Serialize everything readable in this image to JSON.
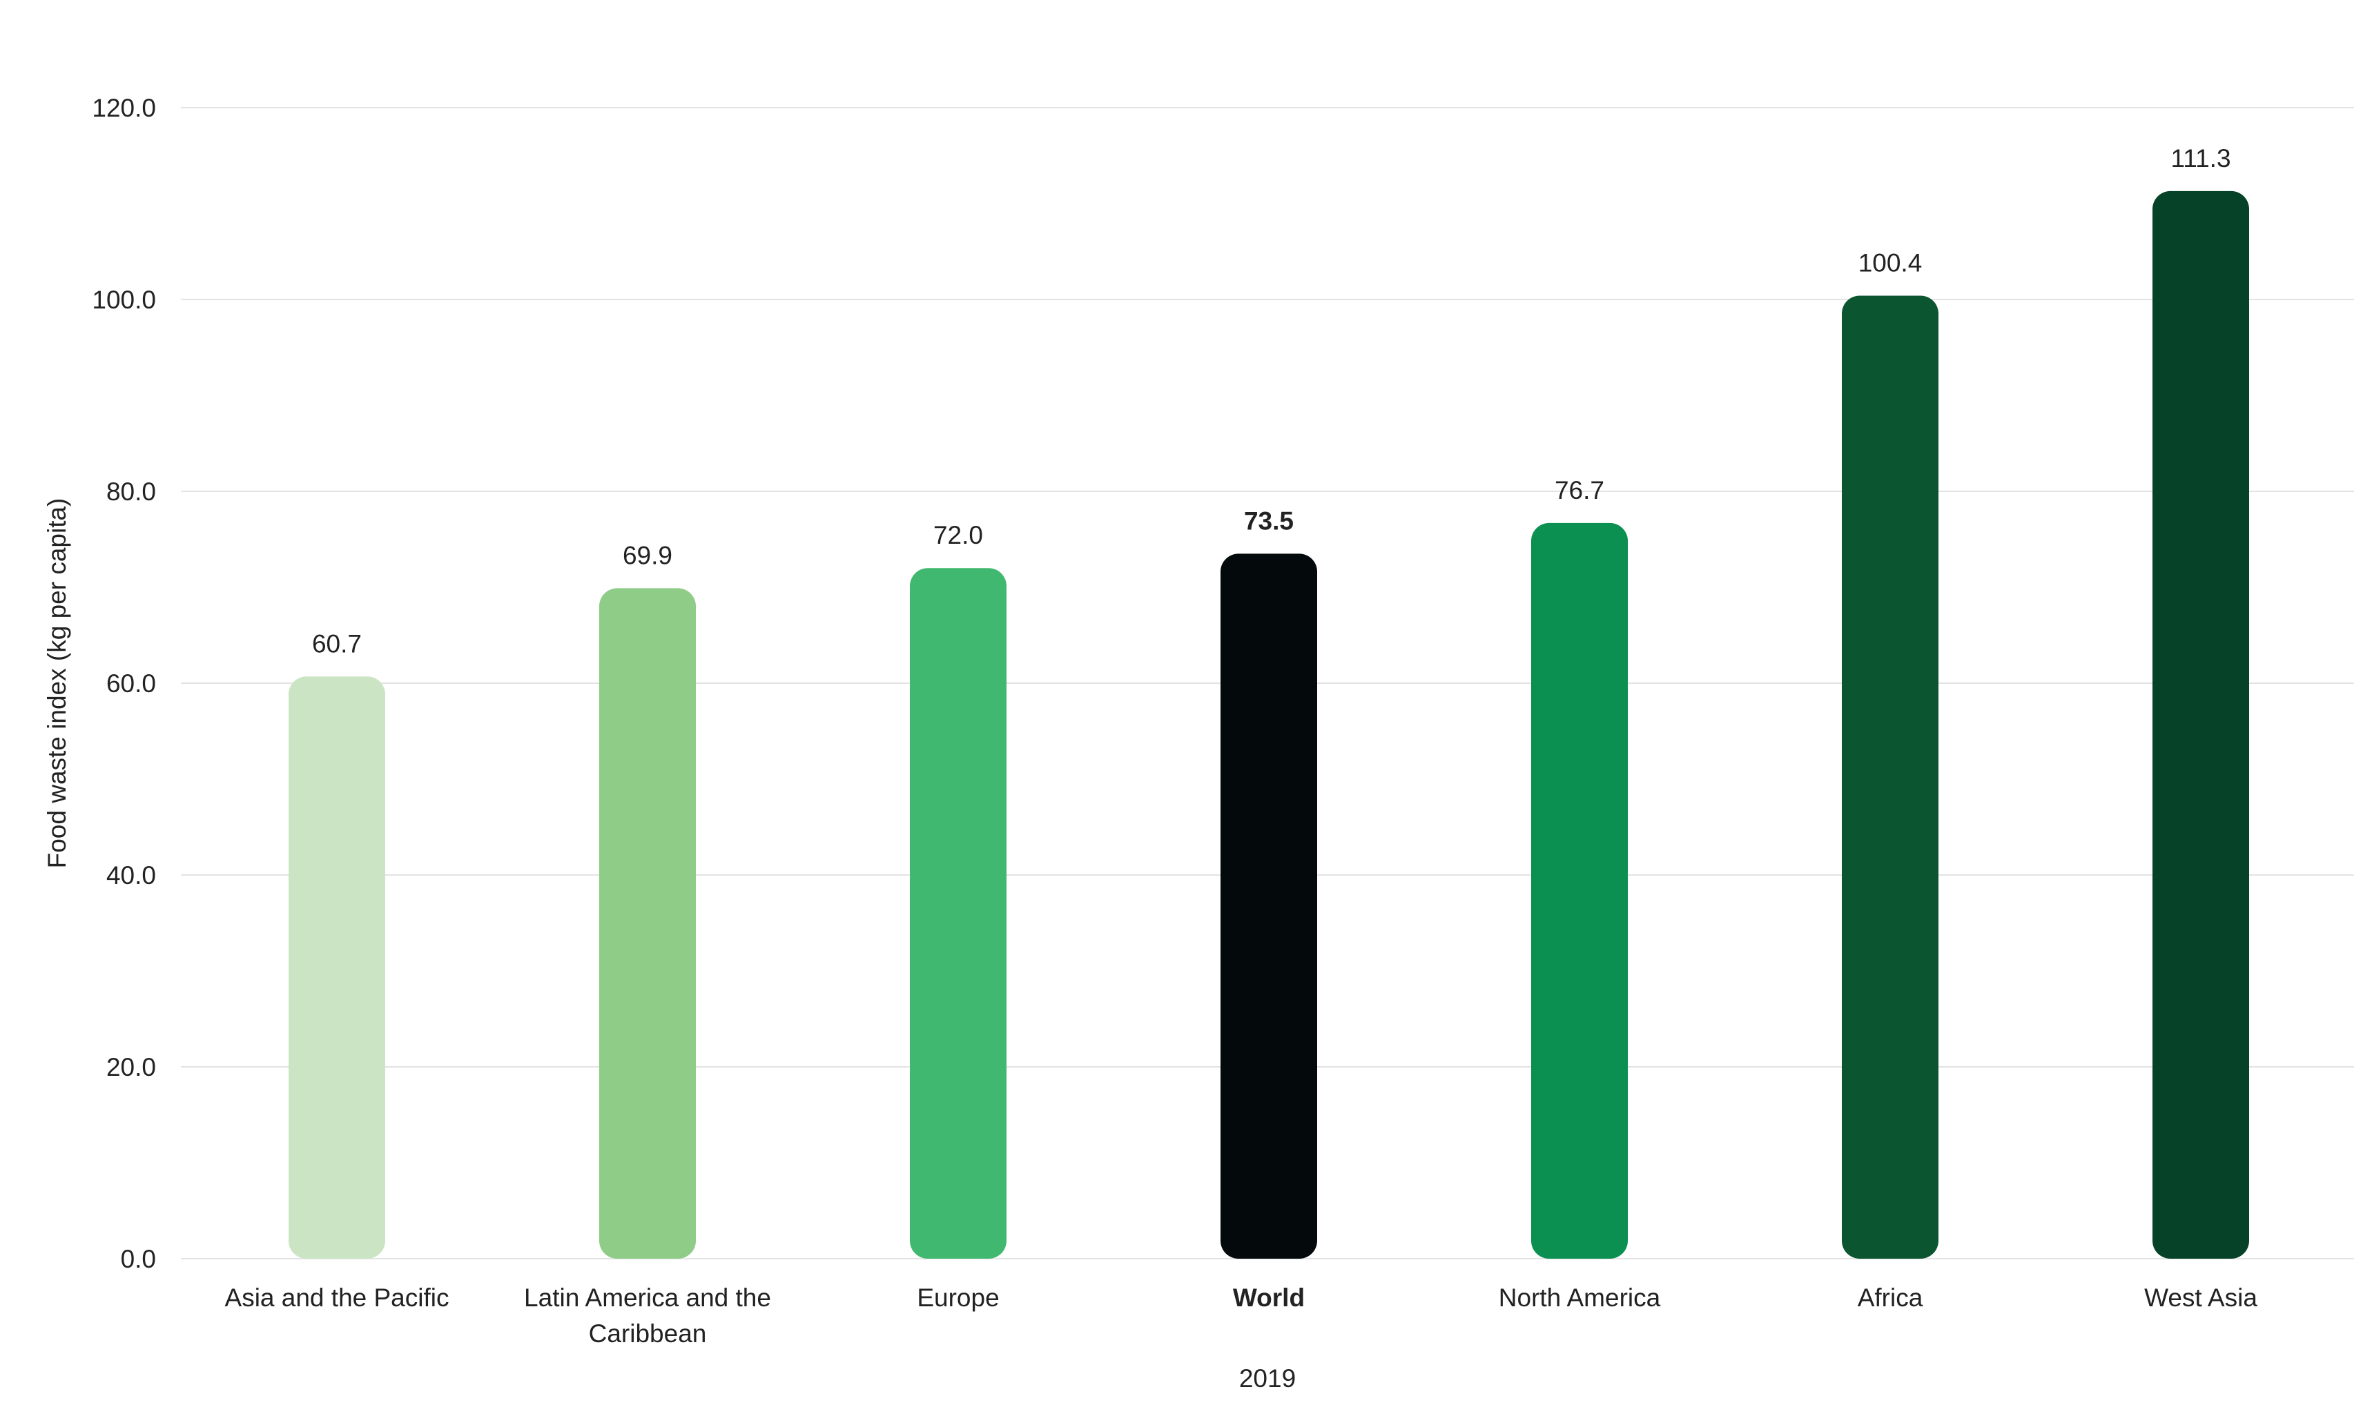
{
  "chart_data": {
    "type": "bar",
    "title": "",
    "ylabel": "Food waste index (kg per capita)",
    "xlabel": "2019",
    "ylim": [
      0,
      120
    ],
    "yticks": [
      0,
      20,
      40,
      60,
      80,
      100,
      120
    ],
    "ytick_labels": [
      "0.0",
      "20.0",
      "40.0",
      "60.0",
      "80.0",
      "100.0",
      "120.0"
    ],
    "grid": true,
    "categories": [
      {
        "label_lines": [
          "Asia and the Pacific"
        ],
        "value": 60.7,
        "value_label": "60.7",
        "color": "#cbe5c4",
        "bold": false
      },
      {
        "label_lines": [
          "Latin America and the",
          "Caribbean"
        ],
        "value": 69.9,
        "value_label": "69.9",
        "color": "#8fcc87",
        "bold": false
      },
      {
        "label_lines": [
          "Europe"
        ],
        "value": 72.0,
        "value_label": "72.0",
        "color": "#41b86f",
        "bold": false
      },
      {
        "label_lines": [
          "World"
        ],
        "value": 73.5,
        "value_label": "73.5",
        "color": "#040a0b",
        "bold": true
      },
      {
        "label_lines": [
          "North America"
        ],
        "value": 76.7,
        "value_label": "76.7",
        "color": "#0b9051",
        "bold": false
      },
      {
        "label_lines": [
          "Africa"
        ],
        "value": 100.4,
        "value_label": "100.4",
        "color": "#0b5631",
        "bold": false
      },
      {
        "label_lines": [
          "West Asia"
        ],
        "value": 111.3,
        "value_label": "111.3",
        "color": "#064228",
        "bold": false
      }
    ]
  }
}
